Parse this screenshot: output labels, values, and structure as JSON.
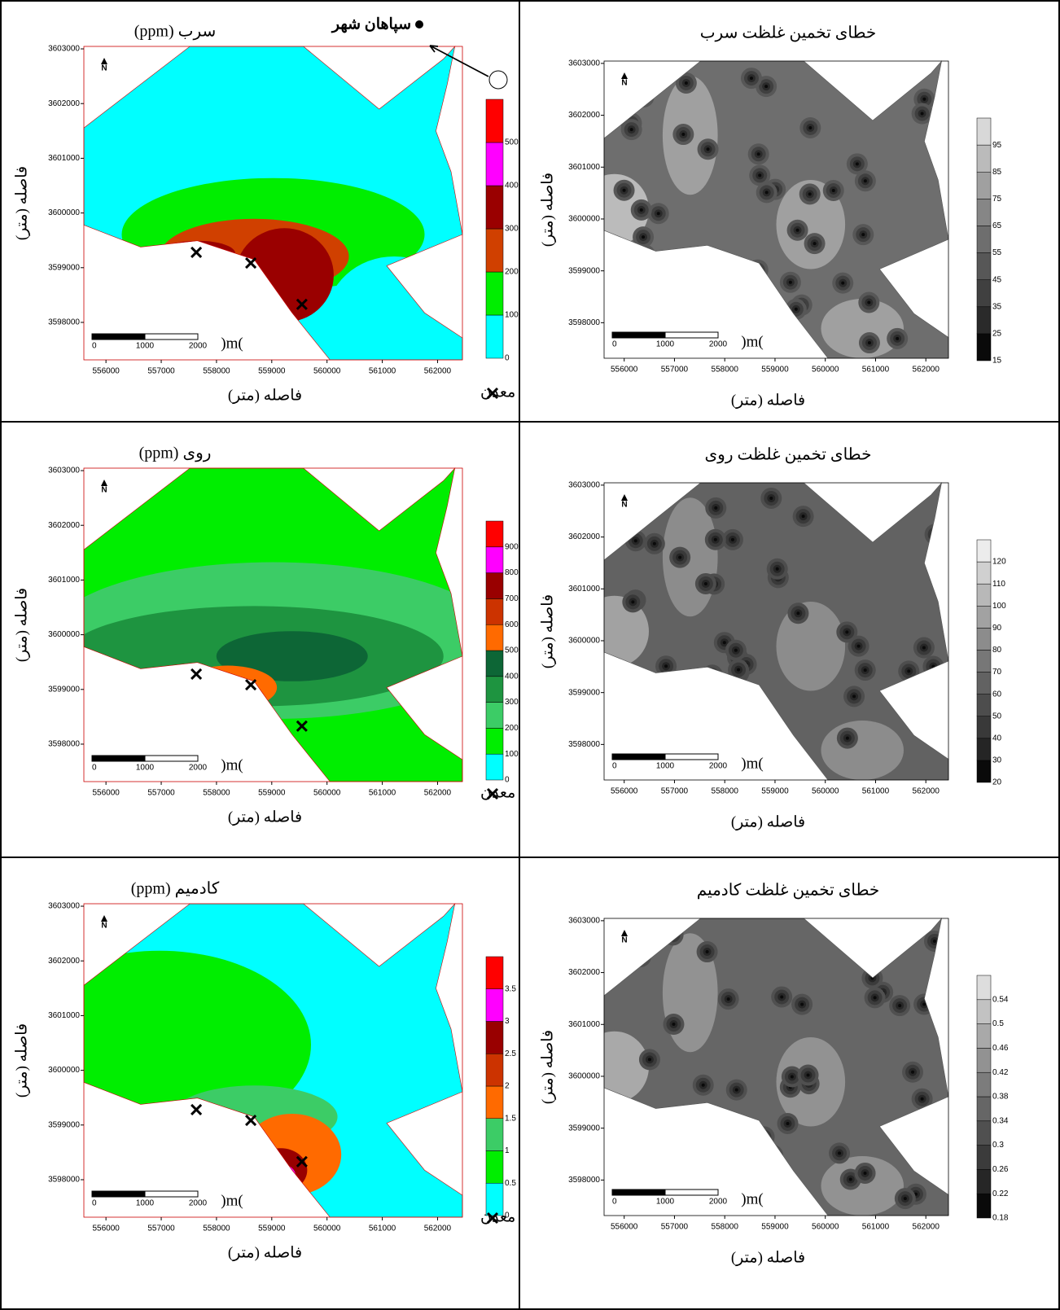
{
  "xticks": [
    556000,
    557000,
    558000,
    559000,
    560000,
    561000,
    562000
  ],
  "yticks": [
    3598000,
    3599000,
    3600000,
    3601000,
    3602000,
    3603000
  ],
  "xlim": [
    555600,
    562450
  ],
  "ylim": [
    3597315,
    3603045
  ],
  "scale_labels": [
    0,
    1000,
    2000
  ],
  "scale_unit": ")m(",
  "north": "N",
  "city_label": "سپاهان شهر",
  "panels": [
    {
      "title": "سرب (ppm)",
      "xlabel": "فاصله (متر)",
      "ylabel": "فاصله (متر)",
      "mine_label": "معدن",
      "legend": [
        0,
        100,
        200,
        300,
        400,
        500
      ],
      "colors": [
        "#00ffff",
        "#00ee00",
        "#d04000",
        "#9a0000",
        "#ff00ff",
        "#ff0000"
      ]
    },
    {
      "title": "خطای تخمین غلظت سرب",
      "xlabel": "فاصله (متر)",
      "ylabel": "فاصله (متر)",
      "legend": [
        15,
        25,
        35,
        45,
        55,
        65,
        75,
        85,
        95
      ],
      "colors": [
        "#0a0a0a",
        "#2a2a2a",
        "#404040",
        "#575757",
        "#6e6e6e",
        "#868686",
        "#a0a0a0",
        "#bbbbbb",
        "#d8d8d8"
      ]
    },
    {
      "title": "روی (ppm)",
      "xlabel": "فاصله (متر)",
      "ylabel": "فاصله (متر)",
      "mine_label": "معدن",
      "legend": [
        0,
        100,
        200,
        300,
        400,
        500,
        600,
        700,
        800,
        900
      ],
      "colors": [
        "#00ffff",
        "#00ee00",
        "#3ccc66",
        "#1e9440",
        "#0d6636",
        "#ff6a00",
        "#cc3300",
        "#990000",
        "#ff00ff",
        "#ff0000"
      ]
    },
    {
      "title": "خطای تخمین غلظت روی",
      "xlabel": "فاصله (متر)",
      "ylabel": "فاصله (متر)",
      "legend": [
        20,
        30,
        40,
        50,
        60,
        70,
        80,
        90,
        100,
        110,
        120
      ],
      "colors": [
        "#0a0a0a",
        "#252525",
        "#393939",
        "#4d4d4d",
        "#626262",
        "#777777",
        "#8c8c8c",
        "#a2a2a2",
        "#b8b8b8",
        "#d0d0d0",
        "#ececec"
      ]
    },
    {
      "title": "کادمیم (ppm)",
      "xlabel": "فاصله (متر)",
      "ylabel": "فاصله (متر)",
      "mine_label": "معدن",
      "legend": [
        0,
        0.5,
        1,
        1.5,
        2,
        2.5,
        3,
        3.5
      ],
      "colors": [
        "#00ffff",
        "#00ee00",
        "#3ccc66",
        "#ff6a00",
        "#cc3300",
        "#990000",
        "#ff00ff",
        "#ff0000"
      ]
    },
    {
      "title": "خطای تخمین غلظت کادمیم",
      "xlabel": "فاصله (متر)",
      "ylabel": "فاصله (متر)",
      "legend": [
        0.18,
        0.22,
        0.26,
        0.3,
        0.34,
        0.38,
        0.42,
        0.46,
        0.5,
        0.54
      ],
      "colors": [
        "#0a0a0a",
        "#262626",
        "#3b3b3b",
        "#505050",
        "#666666",
        "#7c7c7c",
        "#929292",
        "#a9a9a9",
        "#c2c2c2",
        "#dddddd"
      ]
    }
  ]
}
